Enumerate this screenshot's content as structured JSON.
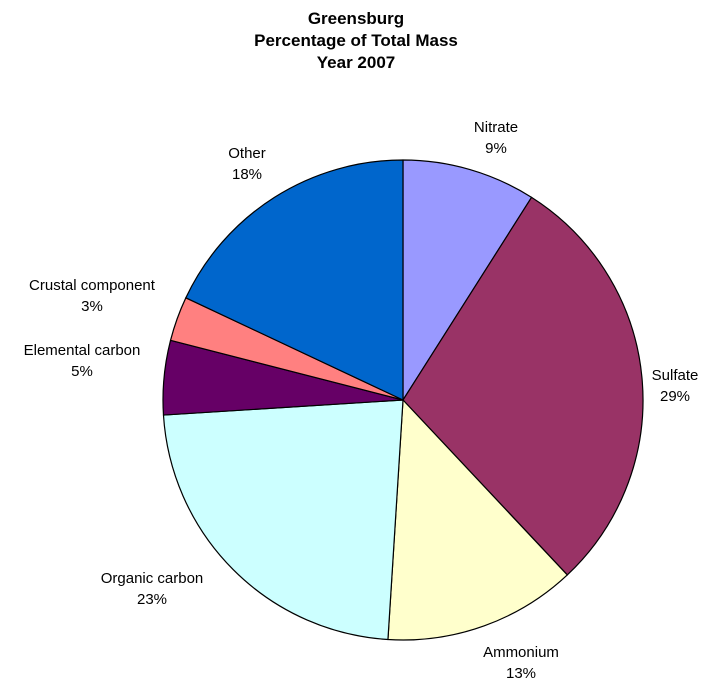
{
  "chart_data": {
    "type": "pie",
    "title": "Greensburg",
    "subtitle": "Percentage of Total Mass",
    "subtitle2": "Year 2007",
    "start_angle_deg": 0,
    "direction": "clockwise",
    "slices": [
      {
        "label": "Nitrate",
        "value": 9,
        "display": "9%",
        "color": "#9999ff"
      },
      {
        "label": "Sulfate",
        "value": 29,
        "display": "29%",
        "color": "#993366"
      },
      {
        "label": "Ammonium",
        "value": 13,
        "display": "13%",
        "color": "#ffffcc"
      },
      {
        "label": "Organic carbon",
        "value": 23,
        "display": "23%",
        "color": "#ccffff"
      },
      {
        "label": "Elemental carbon",
        "value": 5,
        "display": "5%",
        "color": "#660066"
      },
      {
        "label": "Crustal component",
        "value": 3,
        "display": "3%",
        "color": "#ff8080"
      },
      {
        "label": "Other",
        "value": 18,
        "display": "18%",
        "color": "#0066cc"
      }
    ]
  }
}
